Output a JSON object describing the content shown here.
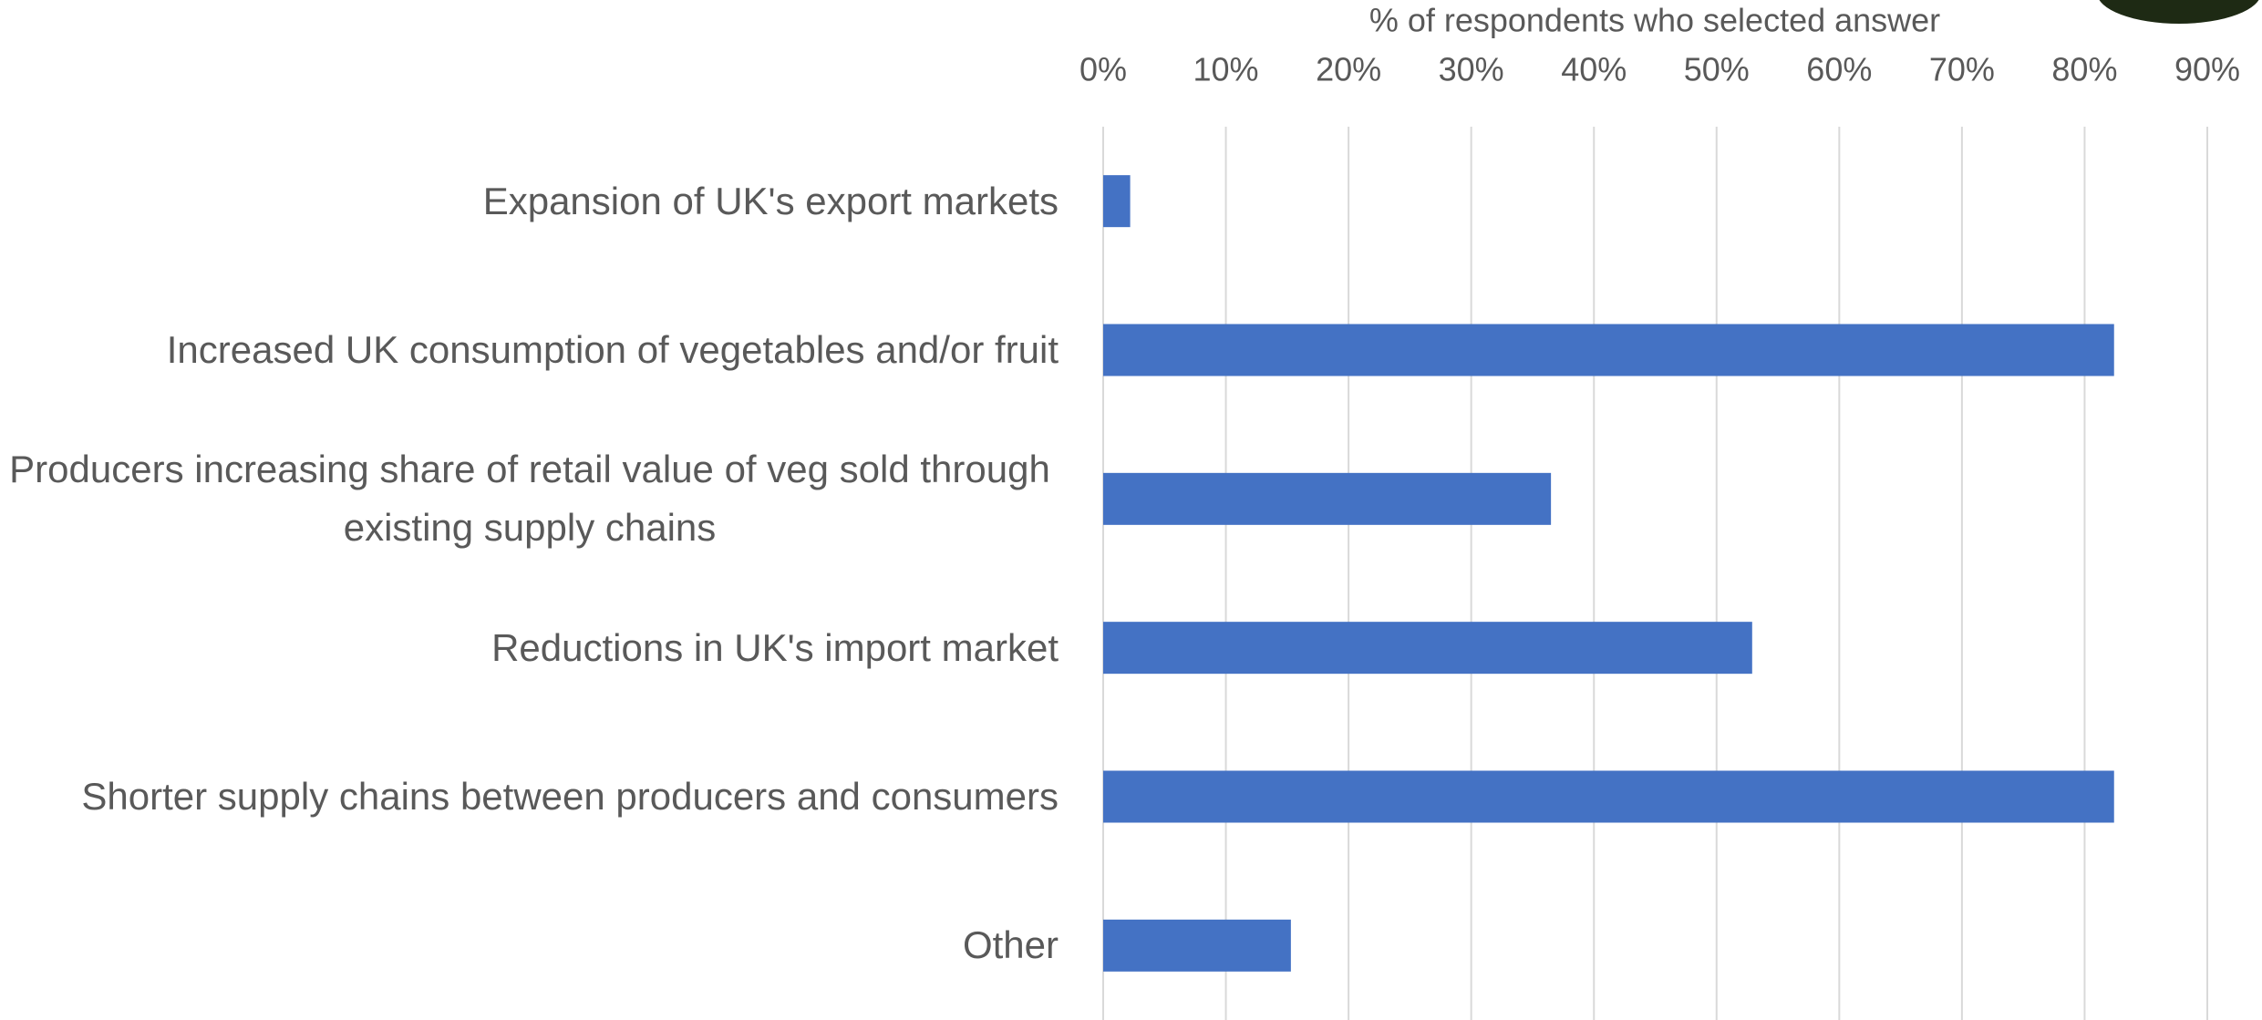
{
  "chart_data": {
    "type": "bar",
    "orientation": "horizontal",
    "x_label": "% of respondents who selected answer",
    "categories": [
      "Expansion of UK's export markets",
      "Increased UK consumption of vegetables and/or fruit",
      "Producers increasing share of retail value of veg sold through existing supply chains",
      "Reductions in UK's import market",
      "Shorter supply chains between producers and consumers",
      "Other"
    ],
    "values": [
      2.2,
      82.4,
      36.5,
      52.9,
      82.4,
      15.3
    ],
    "color": "#4472c4",
    "xlim": [
      0,
      90
    ],
    "xticks": [
      {
        "value": 0,
        "label": "0%"
      },
      {
        "value": 10,
        "label": "10%"
      },
      {
        "value": 20,
        "label": "20%"
      },
      {
        "value": 30,
        "label": "30%"
      },
      {
        "value": 40,
        "label": "40%"
      },
      {
        "value": 50,
        "label": "50%"
      },
      {
        "value": 60,
        "label": "60%"
      },
      {
        "value": 70,
        "label": "70%"
      },
      {
        "value": 80,
        "label": "80%"
      },
      {
        "value": 90,
        "label": "90%"
      }
    ],
    "grid": true
  }
}
